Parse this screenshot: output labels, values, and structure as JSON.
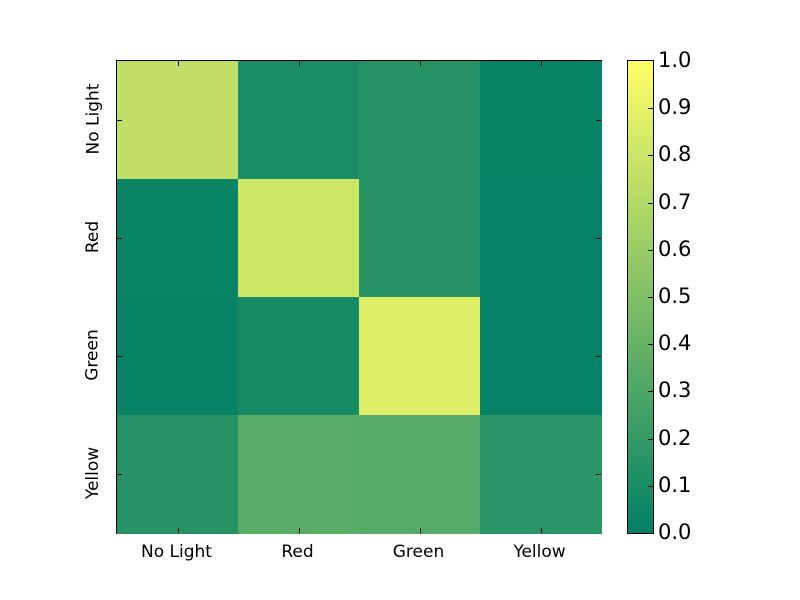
{
  "figure": {
    "background": "#ffffff"
  },
  "chart_data": {
    "type": "heatmap",
    "title": "",
    "xlabel": "",
    "ylabel": "",
    "x_categories": [
      "No Light",
      "Red",
      "Green",
      "Yellow"
    ],
    "y_categories": [
      "No Light",
      "Red",
      "Green",
      "Yellow"
    ],
    "values": [
      [
        0.75,
        0.1,
        0.15,
        0.03
      ],
      [
        0.04,
        0.8,
        0.15,
        0.02
      ],
      [
        0.03,
        0.09,
        0.87,
        0.02
      ],
      [
        0.15,
        0.35,
        0.33,
        0.16
      ]
    ],
    "value_range": [
      0.0,
      1.0
    ],
    "colormap": "summer",
    "colormap_low": "#008066",
    "colormap_high": "#ffff66",
    "grid": false,
    "legend_position": "none",
    "colorbar": {
      "position": "right",
      "min": 0.0,
      "max": 1.0,
      "tick_labels": [
        "0.0",
        "0.1",
        "0.2",
        "0.3",
        "0.4",
        "0.5",
        "0.6",
        "0.7",
        "0.8",
        "0.9",
        "1.0"
      ]
    }
  }
}
